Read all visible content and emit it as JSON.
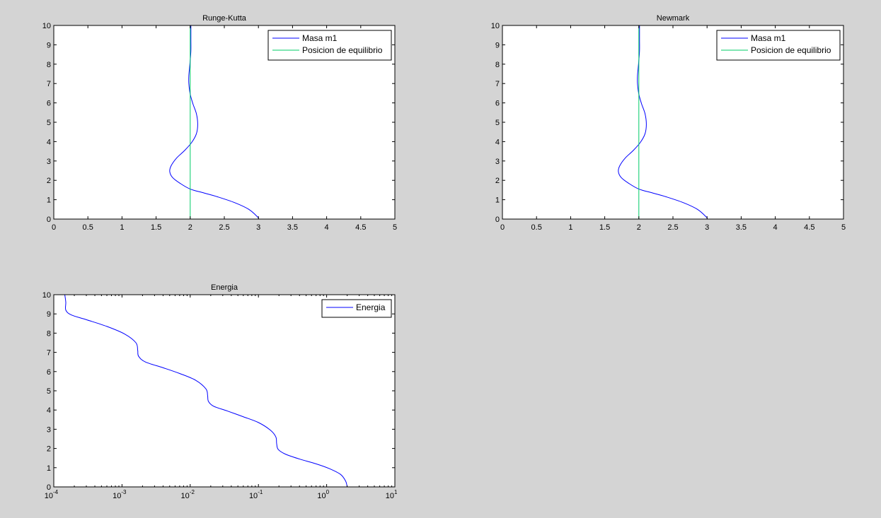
{
  "chart_data": [
    {
      "type": "line",
      "title": "Runge-Kutta",
      "xlabel": "",
      "ylabel": "",
      "xlim": [
        0,
        5
      ],
      "ylim": [
        0,
        10
      ],
      "xscale": "linear",
      "xticks": [
        "0",
        "0.5",
        "1",
        "1.5",
        "2",
        "2.5",
        "3",
        "3.5",
        "4",
        "4.5",
        "5"
      ],
      "yticks": [
        "0",
        "1",
        "2",
        "3",
        "4",
        "5",
        "6",
        "7",
        "8",
        "9",
        "10"
      ],
      "grid": false,
      "legend_position": "top-right",
      "series": [
        {
          "name": "Masa m1",
          "color": "#0000ff",
          "x": [
            3.0,
            2.99,
            2.86,
            2.65,
            2.4,
            2.2,
            2.0,
            1.85,
            1.74,
            1.7,
            1.72,
            1.8,
            1.92,
            2.02,
            2.09,
            2.11,
            2.09,
            2.04,
            2.0,
            1.98,
            1.98,
            1.99,
            2.0,
            2.01,
            2.01,
            2.01
          ],
          "y": [
            0.0,
            0.1,
            0.5,
            0.85,
            1.15,
            1.35,
            1.55,
            1.85,
            2.15,
            2.45,
            2.75,
            3.15,
            3.55,
            3.95,
            4.4,
            4.9,
            5.45,
            5.95,
            6.45,
            7.0,
            7.4,
            7.8,
            8.2,
            8.7,
            9.3,
            10.0
          ]
        },
        {
          "name": "Posicion de equilibrio",
          "color": "#00cc66",
          "x": [
            2.0,
            2.0
          ],
          "y": [
            0,
            10
          ]
        }
      ]
    },
    {
      "type": "line",
      "title": "Newmark",
      "xlabel": "",
      "ylabel": "",
      "xlim": [
        0,
        5
      ],
      "ylim": [
        0,
        10
      ],
      "xscale": "linear",
      "xticks": [
        "0",
        "0.5",
        "1",
        "1.5",
        "2",
        "2.5",
        "3",
        "3.5",
        "4",
        "4.5",
        "5"
      ],
      "yticks": [
        "0",
        "1",
        "2",
        "3",
        "4",
        "5",
        "6",
        "7",
        "8",
        "9",
        "10"
      ],
      "grid": false,
      "legend_position": "top-right",
      "series": [
        {
          "name": "Masa m1",
          "color": "#0000ff",
          "x": [
            3.0,
            2.99,
            2.86,
            2.65,
            2.4,
            2.2,
            2.0,
            1.85,
            1.74,
            1.7,
            1.72,
            1.8,
            1.92,
            2.02,
            2.09,
            2.11,
            2.09,
            2.04,
            2.0,
            1.98,
            1.98,
            1.99,
            2.0,
            2.01,
            2.01,
            2.01
          ],
          "y": [
            0.0,
            0.1,
            0.5,
            0.85,
            1.15,
            1.35,
            1.55,
            1.85,
            2.15,
            2.45,
            2.75,
            3.15,
            3.55,
            3.95,
            4.4,
            4.9,
            5.45,
            5.95,
            6.45,
            7.0,
            7.4,
            7.8,
            8.2,
            8.7,
            9.3,
            10.0
          ]
        },
        {
          "name": "Posicion de equilibrio",
          "color": "#00cc66",
          "x": [
            2.0,
            2.0
          ],
          "y": [
            0,
            10
          ]
        }
      ]
    },
    {
      "type": "line",
      "title": "Energia",
      "xlabel": "",
      "ylabel": "",
      "xlim": [
        0.0001,
        10
      ],
      "ylim": [
        0,
        10
      ],
      "xscale": "log",
      "xticks": [
        {
          "base": "10",
          "exp": "-4"
        },
        {
          "base": "10",
          "exp": "-3"
        },
        {
          "base": "10",
          "exp": "-2"
        },
        {
          "base": "10",
          "exp": "-1"
        },
        {
          "base": "10",
          "exp": "0"
        },
        {
          "base": "10",
          "exp": "1"
        }
      ],
      "yticks": [
        "0",
        "1",
        "2",
        "3",
        "4",
        "5",
        "6",
        "7",
        "8",
        "9",
        "10"
      ],
      "grid": false,
      "legend_position": "top-right",
      "series": [
        {
          "name": "Energia",
          "color": "#0000ff",
          "x": [
            2.0,
            1.9,
            1.6,
            1.1,
            0.7,
            0.4,
            0.25,
            0.195,
            0.185,
            0.18,
            0.15,
            0.1,
            0.06,
            0.035,
            0.022,
            0.0185,
            0.018,
            0.017,
            0.012,
            0.007,
            0.004,
            0.0022,
            0.00175,
            0.0017,
            0.0016,
            0.0011,
            0.0006,
            0.0003,
            0.00018,
            0.00015,
            0.00015,
            0.000145
          ],
          "y": [
            0.0,
            0.3,
            0.65,
            0.95,
            1.2,
            1.45,
            1.7,
            1.95,
            2.25,
            2.6,
            2.95,
            3.35,
            3.65,
            3.95,
            4.2,
            4.45,
            4.75,
            5.1,
            5.55,
            5.9,
            6.2,
            6.5,
            6.8,
            7.1,
            7.5,
            7.95,
            8.35,
            8.7,
            8.95,
            9.2,
            9.6,
            10.0
          ]
        }
      ]
    }
  ]
}
